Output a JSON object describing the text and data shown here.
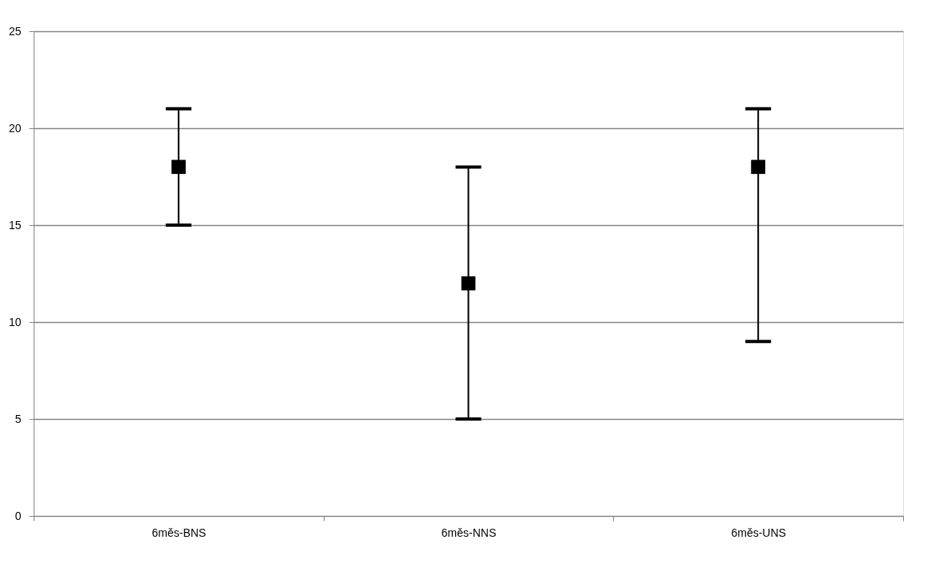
{
  "chart_data": {
    "type": "scatter",
    "categories": [
      "6měs-BNS",
      "6měs-NNS",
      "6měs-UNS"
    ],
    "series": [
      {
        "color": "#000000",
        "values": [
          18,
          12,
          18
        ],
        "errors": [
          [
            15,
            21
          ],
          [
            5,
            18
          ],
          [
            9,
            21
          ]
        ]
      }
    ],
    "marker": "square",
    "ylim": [
      0,
      25
    ],
    "yticks": [
      0,
      5,
      10,
      15,
      20,
      25
    ],
    "grid": "y",
    "legend": false
  }
}
